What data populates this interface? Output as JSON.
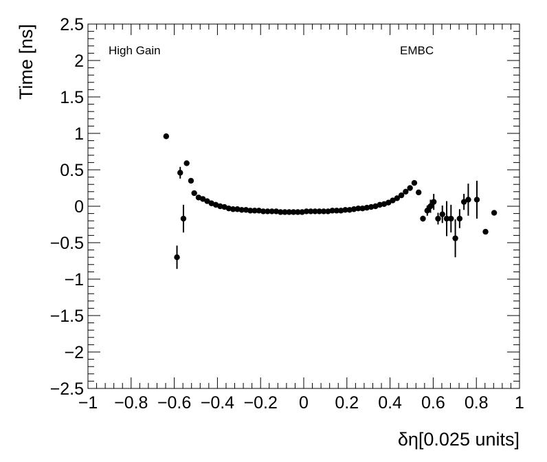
{
  "chart_data": {
    "type": "scatter",
    "xlabel": "δη[0.025 units]",
    "ylabel": "Time [ns]",
    "xlim": [
      -1,
      1
    ],
    "ylim": [
      -2.5,
      2.5
    ],
    "grid": false,
    "legend": "none",
    "x_ticks": [
      -1,
      -0.8,
      -0.6,
      -0.4,
      -0.2,
      0,
      0.2,
      0.4,
      0.6,
      0.8,
      1
    ],
    "x_tick_labels": [
      "−1",
      "−0.8",
      "−0.6",
      "−0.4",
      "−0.2",
      "0",
      "0.2",
      "0.4",
      "0.6",
      "0.8",
      "1"
    ],
    "y_ticks": [
      -2.5,
      -2,
      -1.5,
      -1,
      -0.5,
      0,
      0.5,
      1,
      1.5,
      2,
      2.5
    ],
    "y_tick_labels": [
      "−2.5",
      "−2",
      "−1.5",
      "−1",
      "−0.5",
      "0",
      "0.5",
      "1",
      "1.5",
      "2",
      "2.5"
    ],
    "annotations": [
      {
        "text": "High Gain",
        "anchor": "top-left"
      },
      {
        "text": "EMBC",
        "anchor": "top-right"
      }
    ],
    "marker_color": "#000000",
    "points": [
      {
        "x": -0.6375,
        "y": 0.96,
        "err": 0.02
      },
      {
        "x": -0.5875,
        "y": -0.7,
        "err": 0.16
      },
      {
        "x": -0.5725,
        "y": 0.46,
        "err": 0.08
      },
      {
        "x": -0.5575,
        "y": -0.17,
        "err": 0.19
      },
      {
        "x": -0.5425,
        "y": 0.59,
        "err": 0.02
      },
      {
        "x": -0.5225,
        "y": 0.35,
        "err": 0.02
      },
      {
        "x": -0.5075,
        "y": 0.18,
        "err": 0.02
      },
      {
        "x": -0.4875,
        "y": 0.12,
        "err": 0.01
      },
      {
        "x": -0.4675,
        "y": 0.1,
        "err": 0.01
      },
      {
        "x": -0.4475,
        "y": 0.07,
        "err": 0.01
      },
      {
        "x": -0.4275,
        "y": 0.04,
        "err": 0.01
      },
      {
        "x": -0.4075,
        "y": 0.02,
        "err": 0.01
      },
      {
        "x": -0.3875,
        "y": 0.0,
        "err": 0.01
      },
      {
        "x": -0.3675,
        "y": -0.01,
        "err": 0.01
      },
      {
        "x": -0.3475,
        "y": -0.03,
        "err": 0.01
      },
      {
        "x": -0.3275,
        "y": -0.04,
        "err": 0.01
      },
      {
        "x": -0.3075,
        "y": -0.04,
        "err": 0.01
      },
      {
        "x": -0.2875,
        "y": -0.05,
        "err": 0.01
      },
      {
        "x": -0.2675,
        "y": -0.05,
        "err": 0.01
      },
      {
        "x": -0.2475,
        "y": -0.06,
        "err": 0.01
      },
      {
        "x": -0.2275,
        "y": -0.06,
        "err": 0.01
      },
      {
        "x": -0.2075,
        "y": -0.06,
        "err": 0.01
      },
      {
        "x": -0.1875,
        "y": -0.07,
        "err": 0.01
      },
      {
        "x": -0.1675,
        "y": -0.07,
        "err": 0.01
      },
      {
        "x": -0.1475,
        "y": -0.07,
        "err": 0.01
      },
      {
        "x": -0.1275,
        "y": -0.07,
        "err": 0.01
      },
      {
        "x": -0.1075,
        "y": -0.08,
        "err": 0.01
      },
      {
        "x": -0.0875,
        "y": -0.08,
        "err": 0.01
      },
      {
        "x": -0.0675,
        "y": -0.08,
        "err": 0.01
      },
      {
        "x": -0.0475,
        "y": -0.08,
        "err": 0.01
      },
      {
        "x": -0.0275,
        "y": -0.08,
        "err": 0.01
      },
      {
        "x": -0.0075,
        "y": -0.08,
        "err": 0.01
      },
      {
        "x": 0.0125,
        "y": -0.07,
        "err": 0.01
      },
      {
        "x": 0.0325,
        "y": -0.07,
        "err": 0.01
      },
      {
        "x": 0.0525,
        "y": -0.07,
        "err": 0.01
      },
      {
        "x": 0.0725,
        "y": -0.07,
        "err": 0.01
      },
      {
        "x": 0.0925,
        "y": -0.07,
        "err": 0.01
      },
      {
        "x": 0.1125,
        "y": -0.07,
        "err": 0.01
      },
      {
        "x": 0.1325,
        "y": -0.06,
        "err": 0.01
      },
      {
        "x": 0.1525,
        "y": -0.06,
        "err": 0.01
      },
      {
        "x": 0.1725,
        "y": -0.06,
        "err": 0.01
      },
      {
        "x": 0.1925,
        "y": -0.05,
        "err": 0.01
      },
      {
        "x": 0.2125,
        "y": -0.05,
        "err": 0.01
      },
      {
        "x": 0.2325,
        "y": -0.04,
        "err": 0.01
      },
      {
        "x": 0.2525,
        "y": -0.03,
        "err": 0.01
      },
      {
        "x": 0.2725,
        "y": -0.03,
        "err": 0.01
      },
      {
        "x": 0.2925,
        "y": -0.02,
        "err": 0.01
      },
      {
        "x": 0.3125,
        "y": -0.01,
        "err": 0.01
      },
      {
        "x": 0.3325,
        "y": 0.0,
        "err": 0.01
      },
      {
        "x": 0.3525,
        "y": 0.02,
        "err": 0.01
      },
      {
        "x": 0.3725,
        "y": 0.03,
        "err": 0.01
      },
      {
        "x": 0.3925,
        "y": 0.05,
        "err": 0.01
      },
      {
        "x": 0.4125,
        "y": 0.08,
        "err": 0.01
      },
      {
        "x": 0.4325,
        "y": 0.11,
        "err": 0.01
      },
      {
        "x": 0.4525,
        "y": 0.15,
        "err": 0.01
      },
      {
        "x": 0.4725,
        "y": 0.2,
        "err": 0.01
      },
      {
        "x": 0.4925,
        "y": 0.25,
        "err": 0.01
      },
      {
        "x": 0.5125,
        "y": 0.32,
        "err": 0.02
      },
      {
        "x": 0.5325,
        "y": 0.19,
        "err": 0.02
      },
      {
        "x": 0.5525,
        "y": -0.17,
        "err": 0.04
      },
      {
        "x": 0.5725,
        "y": -0.06,
        "err": 0.07
      },
      {
        "x": 0.5875,
        "y": 0.0,
        "err": 0.09
      },
      {
        "x": 0.6025,
        "y": 0.06,
        "err": 0.11
      },
      {
        "x": 0.6225,
        "y": -0.17,
        "err": 0.08
      },
      {
        "x": 0.6425,
        "y": -0.11,
        "err": 0.12
      },
      {
        "x": 0.6625,
        "y": -0.17,
        "err": 0.24
      },
      {
        "x": 0.6825,
        "y": -0.17,
        "err": 0.19
      },
      {
        "x": 0.7025,
        "y": -0.44,
        "err": 0.26
      },
      {
        "x": 0.7225,
        "y": -0.17,
        "err": 0.13
      },
      {
        "x": 0.7425,
        "y": 0.06,
        "err": 0.11
      },
      {
        "x": 0.7625,
        "y": 0.09,
        "err": 0.22
      },
      {
        "x": 0.8025,
        "y": 0.09,
        "err": 0.26
      },
      {
        "x": 0.8425,
        "y": -0.35,
        "err": 0.02
      },
      {
        "x": 0.8825,
        "y": -0.09,
        "err": 0.02
      }
    ]
  }
}
